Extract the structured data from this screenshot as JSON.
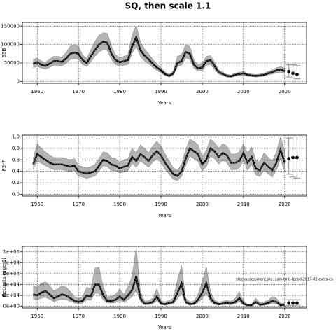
{
  "title": "SQ, then scale 1.1",
  "chart_data": [
    {
      "type": "line",
      "xlabel": "Years",
      "ylabel": "SSB",
      "x": [
        1959,
        1960,
        1961,
        1962,
        1963,
        1964,
        1965,
        1966,
        1967,
        1968,
        1969,
        1970,
        1971,
        1972,
        1973,
        1974,
        1975,
        1976,
        1977,
        1978,
        1979,
        1980,
        1981,
        1982,
        1983,
        1984,
        1985,
        1986,
        1987,
        1988,
        1989,
        1990,
        1991,
        1992,
        1993,
        1994,
        1995,
        1996,
        1997,
        1998,
        1999,
        2000,
        2001,
        2002,
        2003,
        2004,
        2005,
        2006,
        2007,
        2008,
        2009,
        2010,
        2011,
        2012,
        2013,
        2014,
        2015,
        2016,
        2017,
        2018,
        2019,
        2020
      ],
      "values": [
        47000,
        52000,
        45000,
        42000,
        48000,
        55000,
        55000,
        53000,
        62000,
        75000,
        78000,
        75000,
        58000,
        50000,
        68000,
        85000,
        100000,
        108000,
        105000,
        75000,
        58000,
        52000,
        55000,
        58000,
        95000,
        120000,
        85000,
        70000,
        60000,
        48000,
        38000,
        30000,
        20000,
        15000,
        22000,
        50000,
        55000,
        80000,
        75000,
        45000,
        35000,
        38000,
        55000,
        58000,
        42000,
        25000,
        20000,
        15000,
        14000,
        18000,
        20000,
        22000,
        18000,
        16000,
        15000,
        16000,
        18000,
        22000,
        25000,
        30000,
        32000,
        28000
      ],
      "band_upper": [
        60000,
        63000,
        55000,
        52000,
        60000,
        68000,
        68000,
        66000,
        78000,
        95000,
        100000,
        95000,
        72000,
        62000,
        85000,
        108000,
        125000,
        132000,
        130000,
        95000,
        72000,
        65000,
        68000,
        72000,
        125000,
        152000,
        108000,
        88000,
        75000,
        60000,
        47000,
        37000,
        25000,
        19000,
        28000,
        68000,
        72000,
        100000,
        95000,
        58000,
        45000,
        48000,
        68000,
        70000,
        52000,
        31000,
        25000,
        19000,
        17000,
        22000,
        25000,
        27000,
        22000,
        20000,
        19000,
        20000,
        22000,
        27000,
        31000,
        37000,
        40000,
        36000
      ],
      "band_lower": [
        37000,
        41000,
        36000,
        33000,
        38000,
        44000,
        44000,
        42000,
        49000,
        60000,
        62000,
        60000,
        46000,
        40000,
        54000,
        68000,
        80000,
        86000,
        84000,
        60000,
        46000,
        41000,
        44000,
        46000,
        76000,
        96000,
        68000,
        56000,
        48000,
        38000,
        30000,
        24000,
        16000,
        12000,
        17000,
        40000,
        44000,
        64000,
        60000,
        36000,
        28000,
        30000,
        44000,
        46000,
        33000,
        20000,
        16000,
        12000,
        11000,
        14000,
        16000,
        17000,
        14000,
        13000,
        12000,
        13000,
        14000,
        18000,
        20000,
        24000,
        25000,
        22000
      ],
      "forecast_x": [
        2021,
        2022,
        2023
      ],
      "forecast_values": [
        27000,
        22000,
        19000
      ],
      "forecast_lower": [
        12000,
        9000,
        7000
      ],
      "forecast_upper": [
        45000,
        45000,
        43000
      ],
      "xlim": [
        1956.4,
        2025.3
      ],
      "xticks": [
        1960,
        1970,
        1980,
        1990,
        2000,
        2010,
        2020
      ],
      "ylim": [
        -5000,
        160000
      ],
      "yticks": [
        0,
        50000,
        100000,
        150000
      ],
      "grid": true,
      "color": "#000000",
      "band_color": "#b3b3b3",
      "bar_color": "#a0a0a0"
    },
    {
      "type": "line",
      "xlabel": "Years",
      "ylabel": "F3-7",
      "x": [
        1959,
        1960,
        1961,
        1962,
        1963,
        1964,
        1965,
        1966,
        1967,
        1968,
        1969,
        1970,
        1971,
        1972,
        1973,
        1974,
        1975,
        1976,
        1977,
        1978,
        1979,
        1980,
        1981,
        1982,
        1983,
        1984,
        1985,
        1986,
        1987,
        1988,
        1989,
        1990,
        1991,
        1992,
        1993,
        1994,
        1995,
        1996,
        1997,
        1998,
        1999,
        2000,
        2001,
        2002,
        2003,
        2004,
        2005,
        2006,
        2007,
        2008,
        2009,
        2010,
        2011,
        2012,
        2013,
        2014,
        2015,
        2016,
        2017,
        2018,
        2019,
        2020
      ],
      "values": [
        0.52,
        0.7,
        0.65,
        0.6,
        0.55,
        0.52,
        0.52,
        0.52,
        0.5,
        0.48,
        0.5,
        0.4,
        0.38,
        0.36,
        0.38,
        0.4,
        0.5,
        0.6,
        0.58,
        0.52,
        0.5,
        0.45,
        0.48,
        0.5,
        0.65,
        0.58,
        0.7,
        0.65,
        0.58,
        0.68,
        0.75,
        0.68,
        0.55,
        0.45,
        0.35,
        0.32,
        0.4,
        0.62,
        0.8,
        0.75,
        0.7,
        0.52,
        0.6,
        0.8,
        0.75,
        0.65,
        0.72,
        0.68,
        0.55,
        0.55,
        0.58,
        0.72,
        0.55,
        0.65,
        0.45,
        0.42,
        0.55,
        0.48,
        0.42,
        0.55,
        0.78,
        0.55
      ],
      "band_upper": [
        0.62,
        0.88,
        0.8,
        0.74,
        0.68,
        0.64,
        0.64,
        0.64,
        0.62,
        0.6,
        0.62,
        0.5,
        0.48,
        0.46,
        0.48,
        0.52,
        0.62,
        0.74,
        0.72,
        0.64,
        0.62,
        0.56,
        0.6,
        0.62,
        0.8,
        0.72,
        0.86,
        0.8,
        0.72,
        0.84,
        0.92,
        0.84,
        0.7,
        0.58,
        0.46,
        0.42,
        0.52,
        0.78,
        0.96,
        0.92,
        0.86,
        0.66,
        0.76,
        0.96,
        0.9,
        0.8,
        0.88,
        0.84,
        0.7,
        0.7,
        0.74,
        0.88,
        0.72,
        0.82,
        0.6,
        0.56,
        0.72,
        0.64,
        0.58,
        0.74,
        1.0,
        0.75
      ],
      "band_lower": [
        0.44,
        0.58,
        0.54,
        0.5,
        0.46,
        0.43,
        0.43,
        0.43,
        0.41,
        0.4,
        0.41,
        0.32,
        0.3,
        0.28,
        0.3,
        0.32,
        0.41,
        0.5,
        0.48,
        0.42,
        0.41,
        0.37,
        0.39,
        0.41,
        0.54,
        0.47,
        0.58,
        0.53,
        0.47,
        0.56,
        0.62,
        0.55,
        0.44,
        0.35,
        0.26,
        0.24,
        0.31,
        0.5,
        0.67,
        0.62,
        0.57,
        0.41,
        0.48,
        0.67,
        0.62,
        0.53,
        0.59,
        0.55,
        0.43,
        0.43,
        0.46,
        0.59,
        0.42,
        0.52,
        0.34,
        0.31,
        0.42,
        0.36,
        0.3,
        0.42,
        0.62,
        0.4
      ],
      "forecast_x": [
        2021,
        2022,
        2023
      ],
      "forecast_values": [
        0.62,
        0.64,
        0.64
      ],
      "forecast_lower": [
        0.35,
        0.3,
        0.28
      ],
      "forecast_upper": [
        0.98,
        1.0,
        1.0
      ],
      "xlim": [
        1956.4,
        2025.3
      ],
      "xticks": [
        1960,
        1970,
        1980,
        1990,
        2000,
        2010,
        2020
      ],
      "ylim": [
        -0.03,
        1.03
      ],
      "yticks": [
        {
          "value": 0,
          "label": "0.0"
        },
        0.2,
        0.4,
        0.6,
        0.8,
        {
          "value": 1,
          "label": "1.0"
        }
      ],
      "grid": true,
      "color": "#000000",
      "band_color": "#b3b3b3",
      "bar_color": "#a0a0a0"
    },
    {
      "type": "line",
      "xlabel": "Years",
      "ylabel": "Recruits (age 0)",
      "annotation": "stockassessment.org, sam-tmb-fpcod-2017-02-extra-ca",
      "x": [
        1959,
        1960,
        1961,
        1962,
        1963,
        1964,
        1965,
        1966,
        1967,
        1968,
        1969,
        1970,
        1971,
        1972,
        1973,
        1974,
        1975,
        1976,
        1977,
        1978,
        1979,
        1980,
        1981,
        1982,
        1983,
        1984,
        1985,
        1986,
        1987,
        1988,
        1989,
        1990,
        1991,
        1992,
        1993,
        1994,
        1995,
        1996,
        1997,
        1998,
        1999,
        2000,
        2001,
        2002,
        2003,
        2004,
        2005,
        2006,
        2007,
        2008,
        2009,
        2010,
        2011,
        2012,
        2013,
        2014,
        2015,
        2016,
        2017,
        2018,
        2019,
        2020
      ],
      "values": [
        22000,
        20000,
        25000,
        28000,
        22000,
        15000,
        18000,
        22000,
        20000,
        15000,
        10000,
        8000,
        10000,
        20000,
        18000,
        40000,
        40000,
        20000,
        10000,
        10000,
        12000,
        18000,
        12000,
        20000,
        30000,
        55000,
        15000,
        5000,
        5000,
        8000,
        18000,
        5000,
        4000,
        6000,
        8000,
        25000,
        42000,
        8000,
        4000,
        5000,
        12000,
        25000,
        42000,
        15000,
        6000,
        4000,
        5000,
        6000,
        5000,
        8000,
        15000,
        5000,
        2000,
        2000,
        8000,
        3000,
        4000,
        6000,
        10000,
        8000,
        2000,
        3000
      ],
      "band_upper": [
        38000,
        35000,
        42000,
        45000,
        38000,
        28000,
        32000,
        38000,
        35000,
        27000,
        18000,
        15000,
        18000,
        35000,
        32000,
        70000,
        72000,
        35000,
        18000,
        18000,
        22000,
        32000,
        22000,
        36000,
        55000,
        108000,
        28000,
        10000,
        10000,
        15000,
        32000,
        10000,
        8000,
        11000,
        15000,
        48000,
        75000,
        15000,
        8000,
        10000,
        22000,
        45000,
        72000,
        28000,
        11000,
        8000,
        9000,
        11000,
        9000,
        15000,
        27000,
        10000,
        4000,
        4000,
        15000,
        6000,
        8000,
        11000,
        18000,
        15000,
        5000,
        6000
      ],
      "band_lower": [
        13000,
        12000,
        15000,
        17000,
        13000,
        9000,
        11000,
        13000,
        12000,
        9000,
        6000,
        4500,
        6000,
        12000,
        11000,
        24000,
        24000,
        12000,
        6000,
        6000,
        7000,
        11000,
        7000,
        12000,
        18000,
        30000,
        9000,
        3000,
        3000,
        4500,
        11000,
        3000,
        2000,
        3500,
        4500,
        14000,
        24000,
        4500,
        2000,
        3000,
        7000,
        14000,
        24000,
        9000,
        3500,
        2000,
        3000,
        3500,
        3000,
        4500,
        9000,
        3000,
        1000,
        1000,
        4500,
        1500,
        2000,
        3500,
        6000,
        4500,
        1000,
        1500
      ],
      "forecast_x": [
        2021,
        2022,
        2023
      ],
      "forecast_values": [
        6000,
        6000,
        6000
      ],
      "forecast_lower": [
        2000,
        2000,
        2000
      ],
      "forecast_upper": [
        12000,
        12000,
        12000
      ],
      "xlim": [
        1956.4,
        2025.3
      ],
      "xticks": [
        1960,
        1970,
        1980,
        1990,
        2000,
        2010,
        2020
      ],
      "ylim": [
        -3000,
        110000
      ],
      "yticks": [
        {
          "value": 0,
          "label": "0e+00"
        },
        {
          "value": 20000,
          "label": "2e+04"
        },
        {
          "value": 40000,
          "label": "4e+04"
        },
        {
          "value": 60000,
          "label": "6e+04"
        },
        {
          "value": 80000,
          "label": "8e+04"
        },
        {
          "value": 100000,
          "label": "1e+05"
        }
      ],
      "grid": true,
      "color": "#000000",
      "band_color": "#b3b3b3",
      "bar_color": "#a0a0a0"
    }
  ]
}
